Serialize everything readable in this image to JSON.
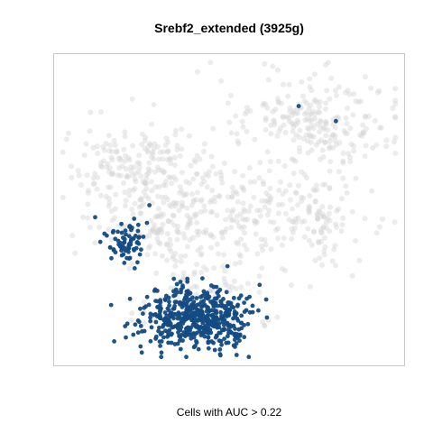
{
  "chart_data": {
    "type": "scatter",
    "title": "Srebf2_extended (3925g)",
    "caption": "Cells with AUC > 0.22",
    "axes_visible": false,
    "grid": false,
    "legend": "none",
    "xlim": [
      0,
      100
    ],
    "ylim": [
      0,
      100
    ],
    "colors": {
      "background_cells": "#d4d4d4",
      "highlighted_cells": "#134b82",
      "frame": "#c8c8c8"
    },
    "background_clusters": [
      {
        "name": "left-upper",
        "cx": 24,
        "cy": 62,
        "sx": 11,
        "sy": 8,
        "n": 230
      },
      {
        "name": "left-lower-band",
        "cx": 28,
        "cy": 44,
        "sx": 8,
        "sy": 6,
        "n": 90
      },
      {
        "name": "center",
        "cx": 52,
        "cy": 48,
        "sx": 10,
        "sy": 7,
        "n": 130
      },
      {
        "name": "right-upper",
        "cx": 75,
        "cy": 79,
        "sx": 13,
        "sy": 8,
        "n": 240
      },
      {
        "name": "right-lower",
        "cx": 76,
        "cy": 48,
        "sx": 9,
        "sy": 8,
        "n": 120
      },
      {
        "name": "lower-middle",
        "cx": 44,
        "cy": 22,
        "sx": 10,
        "sy": 8,
        "n": 110
      }
    ],
    "highlight_clusters": [
      {
        "name": "main-left",
        "cx": 36,
        "cy": 14,
        "sx": 6,
        "sy": 5,
        "n": 300
      },
      {
        "name": "main-right",
        "cx": 46,
        "cy": 14,
        "sx": 5,
        "sy": 5,
        "n": 220
      },
      {
        "name": "upper-small",
        "cx": 20,
        "cy": 39,
        "sx": 3,
        "sy": 3.5,
        "n": 70
      }
    ],
    "highlight_extra_points": [
      {
        "x": 10.5,
        "y": 47.5
      },
      {
        "x": 26.5,
        "y": 51.5
      },
      {
        "x": 70.5,
        "y": 84.5
      },
      {
        "x": 81.5,
        "y": 79.5
      },
      {
        "x": 59,
        "y": 25
      },
      {
        "x": 56,
        "y": 21
      },
      {
        "x": 22,
        "y": 47
      },
      {
        "x": 28,
        "y": 23
      }
    ]
  }
}
